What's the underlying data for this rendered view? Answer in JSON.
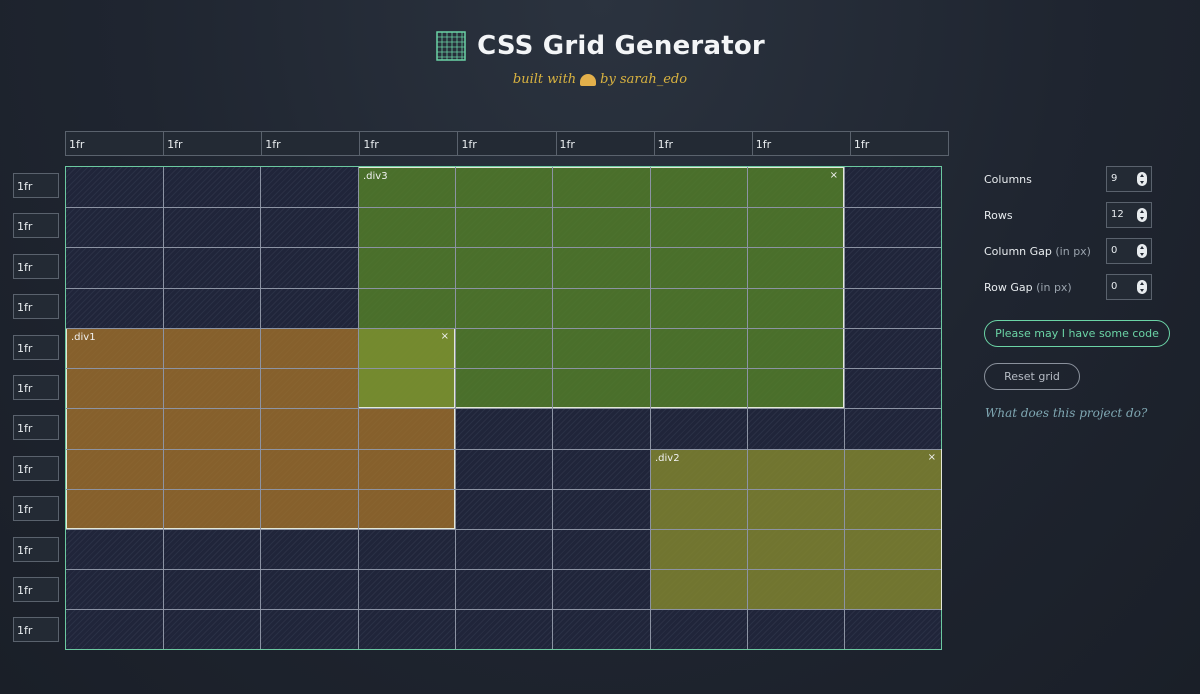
{
  "header": {
    "title": "CSS Grid Generator",
    "subtitle_prefix": "built with",
    "subtitle_suffix": "by sarah_edo",
    "logo_icon": "grid-logo-icon",
    "taco_icon": "taco-icon"
  },
  "columns": [
    "1fr",
    "1fr",
    "1fr",
    "1fr",
    "1fr",
    "1fr",
    "1fr",
    "1fr",
    "1fr"
  ],
  "rows": [
    "1fr",
    "1fr",
    "1fr",
    "1fr",
    "1fr",
    "1fr",
    "1fr",
    "1fr",
    "1fr",
    "1fr",
    "1fr",
    "1fr"
  ],
  "areas": [
    {
      "name": ".div3",
      "close": "×"
    },
    {
      "name": ".div1",
      "close": "×"
    },
    {
      "name": ".div2",
      "close": "×"
    }
  ],
  "controls": {
    "columns_label": "Columns",
    "columns_value": "9",
    "rows_label": "Rows",
    "rows_value": "12",
    "col_gap_label": "Column Gap",
    "col_gap_hint": "(in px)",
    "col_gap_value": "0",
    "row_gap_label": "Row Gap",
    "row_gap_hint": "(in px)",
    "row_gap_value": "0"
  },
  "buttons": {
    "code": "Please may I have some code",
    "reset": "Reset grid"
  },
  "help_link": "What does this project do?",
  "colors": {
    "accent": "#6bd4a6",
    "div1": "#a87428",
    "div2": "#84882e",
    "div3": "#548028"
  }
}
